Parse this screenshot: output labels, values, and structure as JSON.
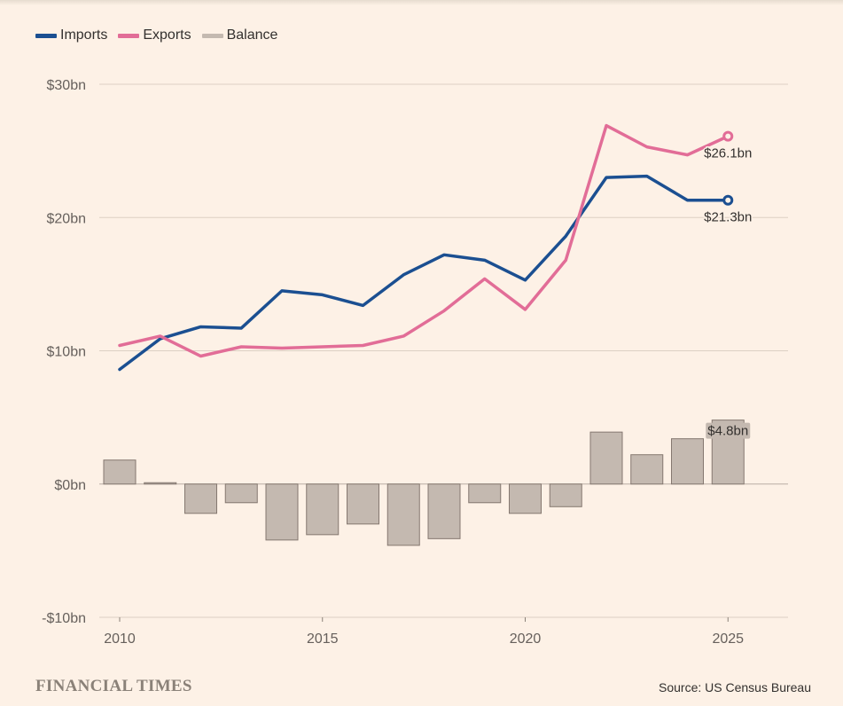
{
  "branding": "FINANCIAL TIMES",
  "source": "Source: US Census Bureau",
  "chart_data": {
    "type": "line+bar",
    "title": "",
    "x": [
      2010,
      2011,
      2012,
      2013,
      2014,
      2015,
      2016,
      2017,
      2018,
      2019,
      2020,
      2021,
      2022,
      2023,
      2024,
      2025
    ],
    "series": [
      {
        "name": "Imports",
        "type": "line",
        "color": "#1b4f91",
        "values": [
          8.6,
          10.9,
          11.8,
          11.7,
          14.5,
          14.2,
          13.4,
          15.7,
          17.2,
          16.8,
          15.3,
          18.6,
          23.0,
          23.1,
          21.3,
          21.3
        ]
      },
      {
        "name": "Exports",
        "type": "line",
        "color": "#e26d97",
        "values": [
          10.4,
          11.1,
          9.6,
          10.3,
          10.2,
          10.3,
          10.4,
          11.1,
          13.0,
          15.4,
          13.1,
          16.8,
          26.9,
          25.3,
          24.7,
          26.1
        ]
      },
      {
        "name": "Balance",
        "type": "bar",
        "color": "#c4b9b0",
        "values": [
          1.8,
          0.1,
          -2.2,
          -1.4,
          -4.2,
          -3.8,
          -3.0,
          -4.6,
          -4.1,
          -1.4,
          -2.2,
          -1.7,
          3.9,
          2.2,
          3.4,
          4.8
        ]
      }
    ],
    "y_ticks": [
      {
        "value": 30,
        "label": "$30bn"
      },
      {
        "value": 20,
        "label": "$20bn"
      },
      {
        "value": 10,
        "label": "$10bn"
      },
      {
        "value": 0,
        "label": "$0bn"
      },
      {
        "value": -10,
        "label": "-$10bn"
      }
    ],
    "x_ticks": [
      {
        "value": 2010,
        "label": "2010"
      },
      {
        "value": 2015,
        "label": "2015"
      },
      {
        "value": 2020,
        "label": "2020"
      },
      {
        "value": 2025,
        "label": "2025"
      }
    ],
    "ylim": [
      -10,
      30
    ],
    "xlim": [
      2010,
      2026.5
    ],
    "annotations": [
      {
        "series": "Exports",
        "x": 2025,
        "label": "$26.1bn"
      },
      {
        "series": "Imports",
        "x": 2025,
        "label": "$21.3bn"
      },
      {
        "series": "Balance",
        "x": 2025,
        "label": "$4.8bn"
      }
    ],
    "grid": true,
    "legend_position": "top-left"
  }
}
